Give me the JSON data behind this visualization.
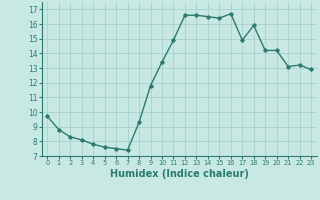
{
  "x": [
    0,
    1,
    2,
    3,
    4,
    5,
    6,
    7,
    8,
    9,
    10,
    11,
    12,
    13,
    14,
    15,
    16,
    17,
    18,
    19,
    20,
    21,
    22,
    23
  ],
  "y": [
    9.7,
    8.8,
    8.3,
    8.1,
    7.8,
    7.6,
    7.5,
    7.4,
    9.3,
    11.8,
    13.4,
    14.9,
    16.6,
    16.6,
    16.5,
    16.4,
    16.7,
    14.9,
    15.9,
    14.2,
    14.2,
    13.1,
    13.2,
    12.9
  ],
  "line_color": "#2d7a6e",
  "marker": "D",
  "marker_size": 1.8,
  "line_width": 1.0,
  "background_color": "#c8e8e4",
  "grid_color": "#a0ccc8",
  "xlabel": "Humidex (Indice chaleur)",
  "xlabel_fontsize": 7,
  "tick_color": "#2d7a6e",
  "tick_label_color": "#2d7a6e",
  "xlim": [
    -0.5,
    23.5
  ],
  "ylim": [
    7,
    17.5
  ],
  "yticks": [
    7,
    8,
    9,
    10,
    11,
    12,
    13,
    14,
    15,
    16,
    17
  ],
  "xticks": [
    0,
    1,
    2,
    3,
    4,
    5,
    6,
    7,
    8,
    9,
    10,
    11,
    12,
    13,
    14,
    15,
    16,
    17,
    18,
    19,
    20,
    21,
    22,
    23
  ]
}
